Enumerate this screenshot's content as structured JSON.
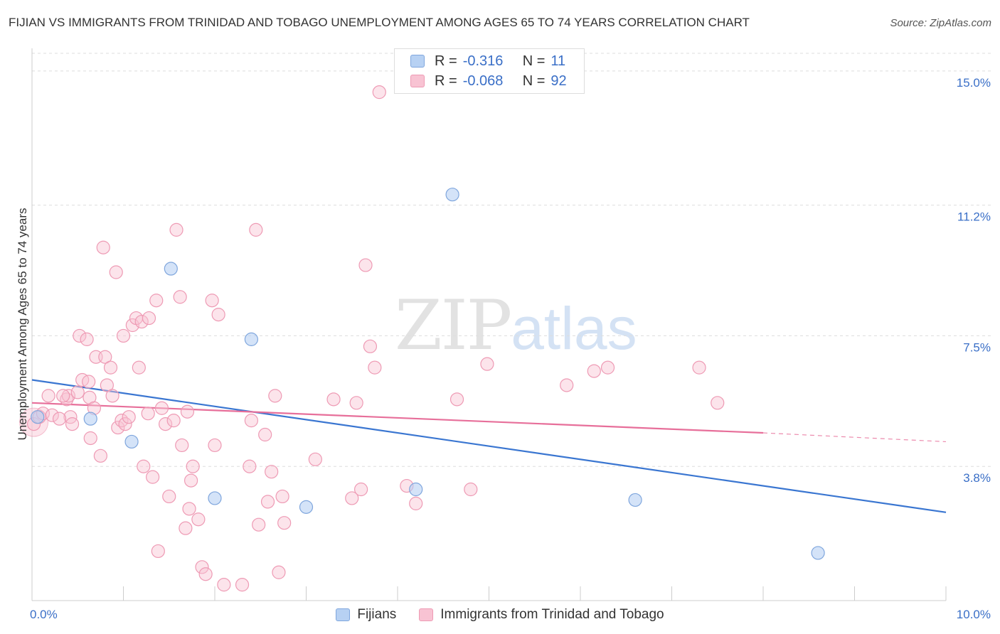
{
  "title": "FIJIAN VS IMMIGRANTS FROM TRINIDAD AND TOBAGO UNEMPLOYMENT AMONG AGES 65 TO 74 YEARS CORRELATION CHART",
  "source": "Source: ZipAtlas.com",
  "watermark": {
    "zip": "ZIP",
    "atlas": "atlas"
  },
  "legend": {
    "r_label": "R =",
    "n_label": "N =",
    "rows": [
      {
        "r": "-0.316",
        "n": "11"
      },
      {
        "r": "-0.068",
        "n": "92"
      }
    ]
  },
  "colors": {
    "fijians_fill": "#b7d1f3",
    "fijians_stroke": "#7fa6dd",
    "fijians_line": "#3a76d1",
    "tt_fill": "#f8c3d3",
    "tt_stroke": "#ee9ab4",
    "tt_line": "#e76f9a",
    "grid": "#dddddd",
    "tick_label": "#3a6fc7"
  },
  "chart_data": {
    "type": "scatter",
    "title": "FIJIAN VS IMMIGRANTS FROM TRINIDAD AND TOBAGO UNEMPLOYMENT AMONG AGES 65 TO 74 YEARS CORRELATION CHART",
    "xlabel": "",
    "ylabel": "Unemployment Among Ages 65 to 74 years",
    "xlim": [
      0,
      10
    ],
    "ylim": [
      0,
      15.5
    ],
    "x_tick_labels": [
      "0.0%",
      "10.0%"
    ],
    "y_ticks": [
      3.8,
      7.5,
      11.2,
      15.0
    ],
    "y_tick_labels": [
      "3.8%",
      "7.5%",
      "11.2%",
      "15.0%"
    ],
    "grid": true,
    "series": [
      {
        "name": "Fijians",
        "points": [
          [
            0.06,
            5.2
          ],
          [
            0.64,
            5.15
          ],
          [
            1.09,
            4.5
          ],
          [
            1.52,
            9.4
          ],
          [
            2.0,
            2.9
          ],
          [
            2.4,
            7.4
          ],
          [
            3.0,
            2.65
          ],
          [
            4.2,
            3.15
          ],
          [
            4.6,
            11.5
          ],
          [
            6.6,
            2.85
          ],
          [
            8.6,
            1.35
          ]
        ],
        "trend": {
          "x0": 0.0,
          "y0": 6.25,
          "x1": 10.0,
          "y1": 2.5
        }
      },
      {
        "name": "Immigrants from Trinidad and Tobago",
        "points": [
          [
            0.02,
            5.0
          ],
          [
            0.08,
            5.2
          ],
          [
            0.12,
            5.3
          ],
          [
            0.18,
            5.8
          ],
          [
            0.22,
            5.25
          ],
          [
            0.38,
            5.7
          ],
          [
            0.4,
            5.8
          ],
          [
            0.42,
            5.2
          ],
          [
            0.44,
            5.0
          ],
          [
            0.5,
            5.9
          ],
          [
            0.52,
            7.5
          ],
          [
            0.55,
            6.25
          ],
          [
            0.6,
            7.4
          ],
          [
            0.62,
            6.2
          ],
          [
            0.63,
            5.75
          ],
          [
            0.64,
            4.6
          ],
          [
            0.68,
            5.45
          ],
          [
            0.7,
            6.9
          ],
          [
            0.75,
            4.1
          ],
          [
            0.78,
            10.0
          ],
          [
            0.8,
            6.9
          ],
          [
            0.82,
            6.1
          ],
          [
            0.86,
            6.6
          ],
          [
            0.88,
            5.8
          ],
          [
            0.92,
            9.3
          ],
          [
            0.94,
            4.9
          ],
          [
            0.98,
            5.1
          ],
          [
            1.0,
            7.5
          ],
          [
            1.02,
            5.0
          ],
          [
            1.06,
            5.2
          ],
          [
            1.1,
            7.8
          ],
          [
            1.14,
            8.0
          ],
          [
            1.17,
            6.6
          ],
          [
            1.2,
            7.9
          ],
          [
            1.22,
            3.8
          ],
          [
            1.27,
            5.3
          ],
          [
            1.28,
            8.0
          ],
          [
            1.32,
            3.5
          ],
          [
            1.36,
            8.5
          ],
          [
            1.38,
            1.4
          ],
          [
            1.42,
            5.45
          ],
          [
            1.46,
            5.0
          ],
          [
            1.5,
            2.95
          ],
          [
            1.55,
            5.1
          ],
          [
            1.58,
            10.5
          ],
          [
            1.62,
            8.6
          ],
          [
            1.64,
            4.4
          ],
          [
            1.68,
            2.05
          ],
          [
            1.72,
            2.6
          ],
          [
            1.74,
            3.4
          ],
          [
            1.76,
            3.8
          ],
          [
            1.82,
            2.3
          ],
          [
            1.86,
            0.95
          ],
          [
            1.9,
            0.75
          ],
          [
            1.97,
            8.5
          ],
          [
            2.0,
            4.4
          ],
          [
            2.04,
            8.1
          ],
          [
            2.1,
            0.45
          ],
          [
            2.3,
            0.45
          ],
          [
            2.4,
            5.1
          ],
          [
            2.45,
            10.5
          ],
          [
            2.48,
            2.15
          ],
          [
            2.55,
            4.7
          ],
          [
            2.58,
            2.8
          ],
          [
            2.62,
            3.65
          ],
          [
            2.66,
            5.8
          ],
          [
            2.7,
            0.8
          ],
          [
            2.74,
            2.95
          ],
          [
            2.76,
            2.2
          ],
          [
            3.1,
            4.0
          ],
          [
            3.3,
            5.7
          ],
          [
            3.5,
            2.9
          ],
          [
            3.55,
            5.6
          ],
          [
            3.6,
            3.15
          ],
          [
            3.65,
            9.5
          ],
          [
            3.7,
            7.2
          ],
          [
            3.75,
            6.6
          ],
          [
            3.8,
            14.4
          ],
          [
            4.1,
            3.25
          ],
          [
            4.2,
            2.75
          ],
          [
            4.65,
            5.7
          ],
          [
            4.8,
            3.15
          ],
          [
            4.98,
            6.7
          ],
          [
            5.85,
            6.1
          ],
          [
            6.15,
            6.5
          ],
          [
            6.3,
            6.6
          ],
          [
            7.3,
            6.6
          ],
          [
            7.5,
            5.6
          ],
          [
            0.3,
            5.15
          ],
          [
            0.34,
            5.8
          ],
          [
            1.7,
            5.35
          ],
          [
            2.38,
            3.8
          ]
        ],
        "trend": {
          "x0": 0.0,
          "y0": 5.6,
          "x1": 8.0,
          "y1": 4.75,
          "dashed_to_x": 10.0,
          "dashed_y": 4.5
        }
      }
    ],
    "legend_placement": "top-center"
  },
  "bottom_legend": [
    "Fijians",
    "Immigrants from Trinidad and Tobago"
  ]
}
